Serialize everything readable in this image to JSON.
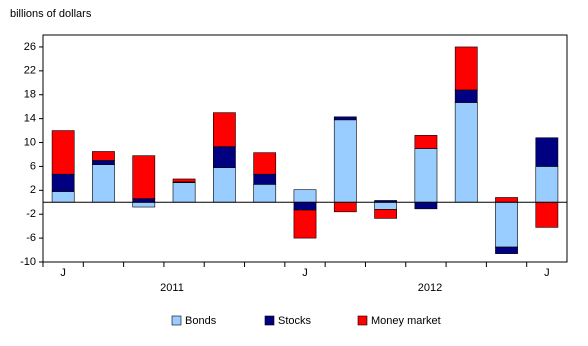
{
  "chart_data": {
    "type": "stacked_bar",
    "y_label": "billions of dollars",
    "categories": [
      "J",
      null,
      null,
      null,
      null,
      null,
      "J",
      null,
      null,
      null,
      null,
      null,
      "J"
    ],
    "annotations": [
      "2011",
      "2012"
    ],
    "series": [
      {
        "name": "Bonds",
        "color": "#99ccff",
        "values": [
          1.8,
          6.3,
          -0.8,
          3.3,
          5.8,
          3.0,
          2.1,
          13.8,
          -1.2,
          9.0,
          16.7,
          -7.5,
          6.0
        ]
      },
      {
        "name": "Stocks",
        "color": "#000080",
        "values": [
          2.9,
          0.7,
          0.6,
          0.1,
          3.5,
          1.7,
          -1.3,
          0.5,
          0.3,
          -1.1,
          2.1,
          -1.1,
          4.8
        ]
      },
      {
        "name": "Money market",
        "color": "#ff0000",
        "values": [
          7.3,
          1.5,
          7.2,
          0.5,
          5.7,
          3.6,
          -4.7,
          -1.6,
          -1.5,
          2.2,
          7.2,
          0.8,
          -4.2
        ]
      }
    ],
    "ylim": [
      -10,
      28
    ],
    "yticks": [
      -10,
      -6,
      -2,
      2,
      6,
      10,
      14,
      18,
      22,
      26
    ],
    "legend": "bottom"
  }
}
